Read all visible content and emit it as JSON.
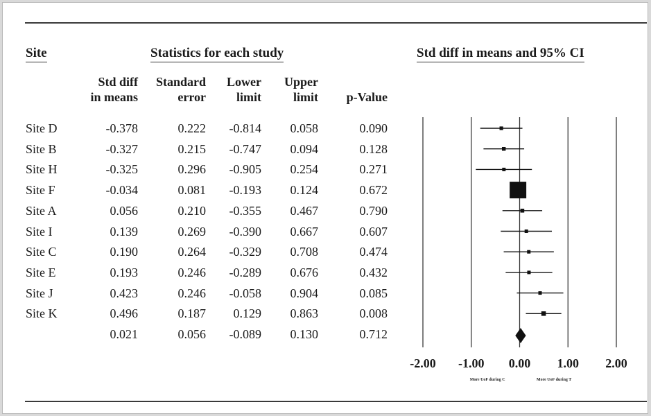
{
  "headers": {
    "site": "Site",
    "stats": "Statistics for each study",
    "ci": "Std diff in means and 95% CI"
  },
  "columns": [
    {
      "line1": "Std diff",
      "line2": "in means"
    },
    {
      "line1": "Standard",
      "line2": "error"
    },
    {
      "line1": "Lower",
      "line2": "limit"
    },
    {
      "line1": "Upper",
      "line2": "limit"
    },
    {
      "line1": "",
      "line2": "p-Value"
    }
  ],
  "rows": [
    {
      "site": "Site D",
      "smd": "-0.378",
      "se": "0.222",
      "lower": "-0.814",
      "upper": "0.058",
      "p": "0.090"
    },
    {
      "site": "Site B",
      "smd": "-0.327",
      "se": "0.215",
      "lower": "-0.747",
      "upper": "0.094",
      "p": "0.128"
    },
    {
      "site": "Site H",
      "smd": "-0.325",
      "se": "0.296",
      "lower": "-0.905",
      "upper": "0.254",
      "p": "0.271"
    },
    {
      "site": "Site F",
      "smd": "-0.034",
      "se": "0.081",
      "lower": "-0.193",
      "upper": "0.124",
      "p": "0.672"
    },
    {
      "site": "Site A",
      "smd": "0.056",
      "se": "0.210",
      "lower": "-0.355",
      "upper": "0.467",
      "p": "0.790"
    },
    {
      "site": "Site I",
      "smd": "0.139",
      "se": "0.269",
      "lower": "-0.390",
      "upper": "0.667",
      "p": "0.607"
    },
    {
      "site": "Site C",
      "smd": "0.190",
      "se": "0.264",
      "lower": "-0.329",
      "upper": "0.708",
      "p": "0.474"
    },
    {
      "site": "Site E",
      "smd": "0.193",
      "se": "0.246",
      "lower": "-0.289",
      "upper": "0.676",
      "p": "0.432"
    },
    {
      "site": "Site J",
      "smd": "0.423",
      "se": "0.246",
      "lower": "-0.058",
      "upper": "0.904",
      "p": "0.085"
    },
    {
      "site": "Site K",
      "smd": "0.496",
      "se": "0.187",
      "lower": "0.129",
      "upper": "0.863",
      "p": "0.008"
    }
  ],
  "summary": {
    "site": "",
    "smd": "0.021",
    "se": "0.056",
    "lower": "-0.089",
    "upper": "0.130",
    "p": "0.712"
  },
  "chart_data": {
    "type": "scatter",
    "subtype": "forest-plot",
    "title": "Std diff in means and 95% CI",
    "xlim": [
      -2,
      2
    ],
    "xticks": [
      -2,
      -1,
      0,
      1,
      2
    ],
    "xtick_labels": [
      "-2.00",
      "-1.00",
      "0.00",
      "1.00",
      "2.00"
    ],
    "vertical_gridlines": [
      -2,
      -1,
      0,
      1,
      2
    ],
    "annotations": {
      "left": "More UoF during C",
      "right": "More UoF during T"
    },
    "studies": [
      {
        "label": "Site D",
        "estimate": -0.378,
        "lower": -0.814,
        "upper": 0.058,
        "se": 0.222
      },
      {
        "label": "Site B",
        "estimate": -0.327,
        "lower": -0.747,
        "upper": 0.094,
        "se": 0.215
      },
      {
        "label": "Site H",
        "estimate": -0.325,
        "lower": -0.905,
        "upper": 0.254,
        "se": 0.296
      },
      {
        "label": "Site F",
        "estimate": -0.034,
        "lower": -0.193,
        "upper": 0.124,
        "se": 0.081
      },
      {
        "label": "Site A",
        "estimate": 0.056,
        "lower": -0.355,
        "upper": 0.467,
        "se": 0.21
      },
      {
        "label": "Site I",
        "estimate": 0.139,
        "lower": -0.39,
        "upper": 0.667,
        "se": 0.269
      },
      {
        "label": "Site C",
        "estimate": 0.19,
        "lower": -0.329,
        "upper": 0.708,
        "se": 0.264
      },
      {
        "label": "Site E",
        "estimate": 0.193,
        "lower": -0.289,
        "upper": 0.676,
        "se": 0.246
      },
      {
        "label": "Site J",
        "estimate": 0.423,
        "lower": -0.058,
        "upper": 0.904,
        "se": 0.246
      },
      {
        "label": "Site K",
        "estimate": 0.496,
        "lower": 0.129,
        "upper": 0.863,
        "se": 0.187
      }
    ],
    "pooled": {
      "estimate": 0.021,
      "lower": -0.089,
      "upper": 0.13,
      "se": 0.056
    }
  }
}
